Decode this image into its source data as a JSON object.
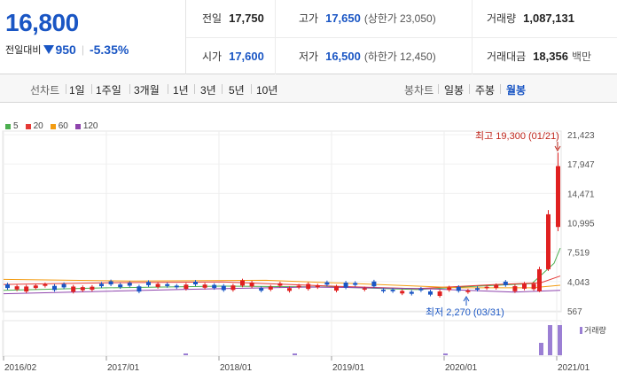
{
  "quote": {
    "price": "16,800",
    "diff_label": "전일대비",
    "diff_value": "950",
    "diff_pct": "-5.35%"
  },
  "stats": {
    "prev_close_label": "전일",
    "prev_close": "17,750",
    "high_label": "고가",
    "high": "17,650",
    "upper_limit_label": "(상한가",
    "upper_limit": "23,050)",
    "volume_label": "거래량",
    "volume": "1,087,131",
    "open_label": "시가",
    "open": "17,600",
    "low_label": "저가",
    "low": "16,500",
    "lower_limit_label": "(하한가",
    "lower_limit": "12,450)",
    "amount_label": "거래대금",
    "amount": "18,356",
    "amount_unit": "백만"
  },
  "toolbar": {
    "line_chart_label": "선차트",
    "periods": [
      "1일",
      "1주일",
      "3개월",
      "1년",
      "3년",
      "5년",
      "10년"
    ],
    "candle_chart_label": "봉차트",
    "candle_periods": [
      "일봉",
      "주봉",
      "월봉"
    ],
    "active_candle_period": "월봉"
  },
  "colors": {
    "up": "#e02020",
    "down": "#1a56c4",
    "ma5": "#4caf50",
    "ma20": "#e53935",
    "ma60": "#f39c12",
    "ma120": "#8e44ad",
    "volume": "#9b7fd4"
  },
  "chart_data": {
    "type": "candlestick",
    "legend": [
      {
        "name": "5",
        "color": "#4caf50"
      },
      {
        "name": "20",
        "color": "#e53935"
      },
      {
        "name": "60",
        "color": "#f39c12"
      },
      {
        "name": "120",
        "color": "#8e44ad"
      }
    ],
    "y_ticks": [
      "21,423",
      "17,947",
      "14,471",
      "10,995",
      "7,519",
      "4,043",
      "567"
    ],
    "y_tick_values": [
      21423,
      17947,
      14471,
      10995,
      7519,
      4043,
      567
    ],
    "x_ticks": [
      "2016/02",
      "2017/01",
      "2018/01",
      "2019/01",
      "2020/01",
      "2021/01"
    ],
    "ylim": [
      567,
      21423
    ],
    "high_annotation": "최고 19,300 (01/21)",
    "low_annotation": "최저 2,270 (03/31)",
    "volume_label": "거래량",
    "recent_candles": [
      {
        "open": 2900,
        "close": 5500,
        "high": 5800,
        "low": 2800
      },
      {
        "open": 5500,
        "close": 12000,
        "high": 12500,
        "low": 5300
      },
      {
        "open": 10500,
        "close": 17700,
        "high": 19300,
        "low": 10000
      }
    ],
    "baseline_price": 3500
  }
}
